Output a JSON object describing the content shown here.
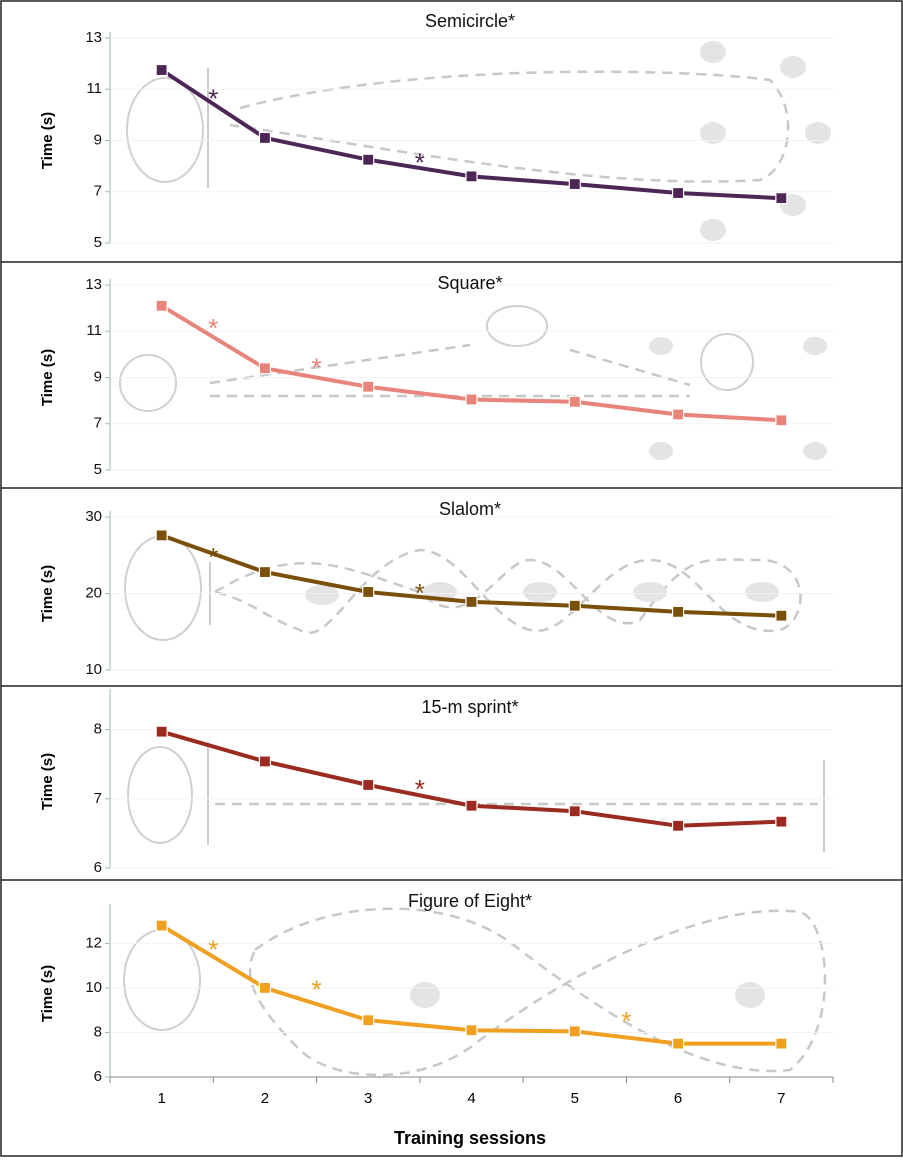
{
  "chart_data": [
    {
      "type": "line",
      "title": "Semicircle*",
      "y_label": "Time (s)",
      "x": [
        1,
        2,
        3,
        4,
        5,
        6,
        7
      ],
      "values": [
        11.75,
        9.1,
        8.25,
        7.6,
        7.3,
        6.95,
        6.75
      ],
      "color": "#4b2656",
      "xlim": [
        0.5,
        7.5
      ],
      "ylim": [
        5,
        13
      ],
      "yticks": [
        5,
        7,
        9,
        11,
        13
      ],
      "annotations": [
        {
          "text": "*",
          "x": 1.5,
          "y": 10.8
        },
        {
          "text": "*",
          "x": 3.5,
          "y": 8.3
        }
      ]
    },
    {
      "type": "line",
      "title": "Square*",
      "y_label": "Time (s)",
      "x": [
        1,
        2,
        3,
        4,
        5,
        6,
        7
      ],
      "values": [
        12.1,
        9.4,
        8.6,
        8.05,
        7.95,
        7.4,
        7.15
      ],
      "color": "#e8847a",
      "xlim": [
        0.5,
        7.5
      ],
      "ylim": [
        5,
        13
      ],
      "yticks": [
        5,
        7,
        9,
        11,
        13
      ],
      "annotations": [
        {
          "text": "*",
          "x": 1.5,
          "y": 11.3
        },
        {
          "text": "*",
          "x": 2.5,
          "y": 9.6
        }
      ]
    },
    {
      "type": "line",
      "title": "Slalom*",
      "y_label": "Time (s)",
      "x": [
        1,
        2,
        3,
        4,
        5,
        6,
        7
      ],
      "values": [
        27.6,
        22.8,
        20.2,
        18.9,
        18.4,
        17.6,
        17.1
      ],
      "color": "#7a4f0a",
      "xlim": [
        0.5,
        7.5
      ],
      "ylim": [
        10,
        30
      ],
      "yticks": [
        10,
        20,
        30
      ],
      "annotations": [
        {
          "text": "*",
          "x": 1.5,
          "y": 25.3
        },
        {
          "text": "*",
          "x": 3.5,
          "y": 20.6
        }
      ]
    },
    {
      "type": "line",
      "title": "15-m sprint*",
      "y_label": "Time (s)",
      "x": [
        1,
        2,
        3,
        4,
        5,
        6,
        7
      ],
      "values": [
        7.97,
        7.54,
        7.2,
        6.9,
        6.82,
        6.61,
        6.67
      ],
      "color": "#9b2a20",
      "xlim": [
        0.5,
        7.5
      ],
      "ylim": [
        6,
        8.5
      ],
      "yticks": [
        6,
        7,
        8
      ],
      "annotations": [
        {
          "text": "*",
          "x": 3.5,
          "y": 7.2
        }
      ]
    },
    {
      "type": "line",
      "title": "Figure of Eight*",
      "y_label": "Time (s)",
      "x_label": "Training sessions",
      "x": [
        1,
        2,
        3,
        4,
        5,
        6,
        7
      ],
      "values": [
        12.8,
        10.0,
        8.55,
        8.1,
        8.05,
        7.5,
        7.5
      ],
      "color": "#f0a020",
      "xlim": [
        0.5,
        7.5
      ],
      "ylim": [
        6,
        13.5
      ],
      "yticks": [
        6,
        8,
        10,
        12
      ],
      "xticks": [
        1,
        2,
        3,
        4,
        5,
        6,
        7
      ],
      "annotations": [
        {
          "text": "*",
          "x": 1.5,
          "y": 11.9
        },
        {
          "text": "*",
          "x": 2.5,
          "y": 10.1
        },
        {
          "text": "*",
          "x": 5.5,
          "y": 8.7
        }
      ]
    }
  ]
}
